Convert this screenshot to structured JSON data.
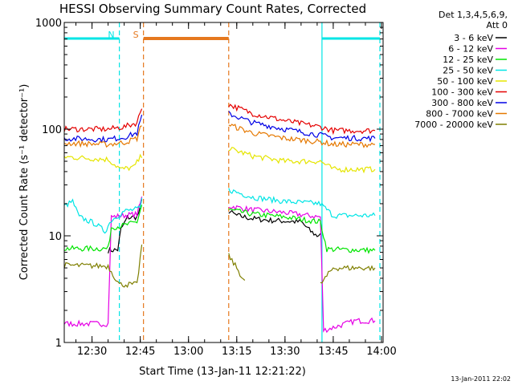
{
  "chart_data": {
    "type": "line",
    "title": "HESSI Observing Summary Count Rates, Corrected",
    "xlabel": "Start Time (13-Jan-11 12:21:22)",
    "ylabel": "Corrected Count Rate (s⁻¹ detector⁻¹)",
    "y_scale": "log",
    "ylim": [
      1,
      1000
    ],
    "xlim": [
      "12:21:22",
      "14:00:30"
    ],
    "x_ticks": [
      "12:30",
      "12:45",
      "13:00",
      "13:15",
      "13:30",
      "13:45",
      "14:00"
    ],
    "y_ticks": [
      "1",
      "10",
      "100",
      "1000"
    ],
    "legend_header": [
      "Det 1,3,4,5,6,9,",
      "Att 0"
    ],
    "legend_position": "right",
    "timestamp": "13-Jan-2011 22:02",
    "annotations": [
      {
        "label": "N",
        "kind": "night",
        "color": "#00e5e5",
        "times": [
          [
            "12:21:22",
            "12:38:30"
          ],
          [
            "13:41:30",
            "13:59:30"
          ]
        ],
        "boundaries": [
          "12:38:30",
          "13:41:30",
          "13:59:30"
        ]
      },
      {
        "label": "S",
        "kind": "saa",
        "color": "#e5781e",
        "times": [
          [
            "12:46:00",
            "13:12:30"
          ]
        ],
        "boundaries": [
          "12:46:00",
          "13:12:30"
        ]
      }
    ],
    "series": [
      {
        "name": "3 - 6 keV",
        "color": "#000000",
        "values": [
          [
            "12:35:00",
            7.3
          ],
          [
            "12:38:00",
            7.4
          ],
          [
            "12:39:00",
            11.5
          ],
          [
            "12:41:00",
            14.8
          ],
          [
            "12:44:00",
            15.0
          ],
          [
            "12:45:00",
            18.0
          ],
          [
            "12:46:00",
            25.0
          ],
          [
            "13:12:30",
            17.0
          ],
          [
            "13:15:00",
            15.5
          ],
          [
            "13:20:00",
            14.5
          ],
          [
            "13:25:00",
            14.0
          ],
          [
            "13:35:00",
            13.5
          ],
          [
            "13:38:00",
            11.0
          ],
          [
            "13:40:00",
            10.0
          ],
          [
            "13:41:00",
            10.5
          ]
        ]
      },
      {
        "name": "6 - 12 keV",
        "color": "#e500e5",
        "values": [
          [
            "12:21:22",
            1.5
          ],
          [
            "12:35:00",
            1.5
          ],
          [
            "12:36:00",
            15.0
          ],
          [
            "12:40:00",
            15.5
          ],
          [
            "12:44:00",
            16.0
          ],
          [
            "12:45:00",
            20.0
          ],
          [
            "12:46:00",
            26.0
          ],
          [
            "13:12:30",
            19.0
          ],
          [
            "13:20:00",
            17.5
          ],
          [
            "13:30:00",
            16.5
          ],
          [
            "13:41:00",
            15.0
          ],
          [
            "13:42:00",
            1.3
          ],
          [
            "13:52:00",
            1.6
          ],
          [
            "13:58:00",
            1.6
          ]
        ]
      },
      {
        "name": "12 - 25 keV",
        "color": "#00e500",
        "values": [
          [
            "12:21:22",
            7.6
          ],
          [
            "12:35:00",
            7.6
          ],
          [
            "12:36:00",
            12.0
          ],
          [
            "12:40:00",
            12.5
          ],
          [
            "12:44:00",
            13.5
          ],
          [
            "12:46:00",
            22.0
          ],
          [
            "13:12:30",
            17.5
          ],
          [
            "13:20:00",
            16.0
          ],
          [
            "13:30:00",
            15.0
          ],
          [
            "13:41:00",
            13.5
          ],
          [
            "13:43:00",
            7.5
          ],
          [
            "13:50:00",
            7.4
          ],
          [
            "13:58:00",
            7.3
          ]
        ]
      },
      {
        "name": "25 - 50 keV",
        "color": "#00e5e5",
        "values": [
          [
            "12:21:22",
            19.0
          ],
          [
            "12:24:00",
            21.0
          ],
          [
            "12:26:00",
            15.0
          ],
          [
            "12:31:00",
            13.0
          ],
          [
            "12:34:00",
            11.0
          ],
          [
            "12:36:00",
            14.0
          ],
          [
            "12:40:00",
            17.0
          ],
          [
            "12:45:00",
            18.0
          ],
          [
            "12:46:00",
            28.0
          ],
          [
            "13:12:30",
            27.0
          ],
          [
            "13:20:00",
            23.0
          ],
          [
            "13:30:00",
            21.0
          ],
          [
            "13:41:00",
            20.0
          ],
          [
            "13:45:00",
            15.5
          ],
          [
            "13:58:00",
            15.5
          ]
        ]
      },
      {
        "name": "50 - 100 keV",
        "color": "#e5e500",
        "values": [
          [
            "12:21:22",
            55.0
          ],
          [
            "12:35:00",
            52.0
          ],
          [
            "12:39:00",
            42.0
          ],
          [
            "12:43:00",
            44.0
          ],
          [
            "12:46:00",
            60.0
          ],
          [
            "13:12:30",
            66.0
          ],
          [
            "13:20:00",
            56.0
          ],
          [
            "13:30:00",
            50.0
          ],
          [
            "13:41:00",
            50.0
          ],
          [
            "13:45:00",
            42.0
          ],
          [
            "13:58:00",
            42.0
          ]
        ]
      },
      {
        "name": "100 - 300 keV",
        "color": "#e50000",
        "values": [
          [
            "12:21:22",
            100.0
          ],
          [
            "12:35:00",
            100.0
          ],
          [
            "12:40:00",
            105.0
          ],
          [
            "12:44:00",
            115.0
          ],
          [
            "12:46:00",
            180.0
          ],
          [
            "13:12:30",
            170.0
          ],
          [
            "13:20:00",
            140.0
          ],
          [
            "13:30:00",
            120.0
          ],
          [
            "13:41:00",
            105.0
          ],
          [
            "13:45:00",
            97.0
          ],
          [
            "13:58:00",
            97.0
          ]
        ]
      },
      {
        "name": "300 - 800 keV",
        "color": "#0000e5",
        "values": [
          [
            "12:21:22",
            82.0
          ],
          [
            "12:35:00",
            80.0
          ],
          [
            "12:40:00",
            84.0
          ],
          [
            "12:44:00",
            92.0
          ],
          [
            "12:46:00",
            150.0
          ],
          [
            "13:12:30",
            140.0
          ],
          [
            "13:20:00",
            115.0
          ],
          [
            "13:30:00",
            100.0
          ],
          [
            "13:41:00",
            88.0
          ],
          [
            "13:45:00",
            83.0
          ],
          [
            "13:58:00",
            82.0
          ]
        ]
      },
      {
        "name": "800 - 7000 keV",
        "color": "#e57800",
        "values": [
          [
            "12:21:22",
            74.0
          ],
          [
            "12:35:00",
            72.0
          ],
          [
            "12:40:00",
            75.0
          ],
          [
            "12:44:00",
            82.0
          ],
          [
            "12:46:00",
            125.0
          ],
          [
            "13:12:30",
            110.0
          ],
          [
            "13:20:00",
            92.0
          ],
          [
            "13:30:00",
            82.0
          ],
          [
            "13:41:00",
            76.0
          ],
          [
            "13:45:00",
            72.0
          ],
          [
            "13:58:00",
            72.0
          ]
        ]
      },
      {
        "name": "7000 - 20000 keV",
        "color": "#7f7f00",
        "values": [
          [
            "12:21:22",
            5.3
          ],
          [
            "12:35:00",
            5.2
          ],
          [
            "12:38:30",
            3.5
          ],
          [
            "12:44:00",
            3.5
          ],
          [
            "12:46:00",
            11.0
          ],
          [
            "13:12:30",
            6.5
          ],
          [
            "13:15:00",
            5.0
          ],
          [
            "13:18:00",
            3.5
          ],
          [
            "13:41:00",
            3.5
          ],
          [
            "13:45:00",
            5.0
          ],
          [
            "13:58:00",
            5.0
          ]
        ]
      }
    ]
  }
}
